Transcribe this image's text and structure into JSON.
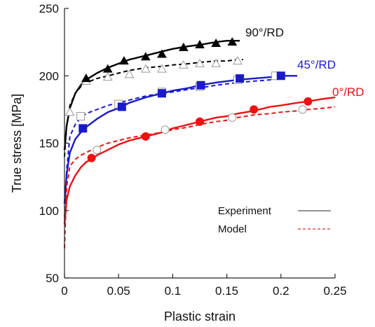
{
  "chart_data": {
    "type": "line",
    "title": "",
    "xlabel": "Plastic strain",
    "ylabel": "True stress [MPa]",
    "xlim": [
      0,
      0.25
    ],
    "ylim": [
      50,
      250
    ],
    "xticks": [
      {
        "value": 0,
        "label": "0"
      },
      {
        "value": 0.05,
        "label": "0.05"
      },
      {
        "value": 0.1,
        "label": "0.1"
      },
      {
        "value": 0.15,
        "label": "0.15"
      },
      {
        "value": 0.2,
        "label": "0.2"
      },
      {
        "value": 0.25,
        "label": "0.25"
      }
    ],
    "yticks": [
      {
        "value": 50,
        "label": "50"
      },
      {
        "value": 100,
        "label": "100"
      },
      {
        "value": 150,
        "label": "150"
      },
      {
        "value": 200,
        "label": "200"
      },
      {
        "value": 250,
        "label": "250"
      }
    ],
    "grid": false,
    "legend": {
      "position": "bottom-right",
      "entries": [
        {
          "label": "Experiment",
          "style": "solid",
          "color": "#555555"
        },
        {
          "label": "Model",
          "style": "dashed",
          "color": "#cc3333"
        }
      ]
    },
    "series": [
      {
        "name": "90°/RD",
        "color": "#000000",
        "marker": "triangle",
        "experiment": {
          "x": [
            0,
            0.002,
            0.005,
            0.01,
            0.015,
            0.02,
            0.03,
            0.04,
            0.05,
            0.06,
            0.075,
            0.09,
            0.1,
            0.115,
            0.125,
            0.14,
            0.15,
            0.155,
            0.16,
            0.162
          ],
          "y": [
            145,
            163,
            176,
            187,
            193,
            197,
            202,
            206,
            209,
            212,
            215,
            218,
            220,
            222,
            223,
            225,
            226,
            226,
            226,
            226
          ]
        },
        "model": {
          "x": [
            0,
            0.002,
            0.005,
            0.01,
            0.015,
            0.02,
            0.03,
            0.04,
            0.05,
            0.06,
            0.075,
            0.09,
            0.1,
            0.115,
            0.125,
            0.14,
            0.15,
            0.16,
            0.165
          ],
          "y": [
            140,
            163,
            178,
            187,
            192,
            195,
            198,
            200,
            202,
            204,
            206,
            207,
            208,
            209,
            210,
            211,
            211,
            212,
            212
          ]
        },
        "experiment_markers": {
          "x": [
            0.02,
            0.04,
            0.055,
            0.075,
            0.09,
            0.11,
            0.125,
            0.14,
            0.155
          ],
          "y": [
            198,
            205,
            211,
            214,
            216,
            221,
            223,
            224,
            225
          ]
        },
        "model_markers": {
          "x": [
            0.005,
            0.02,
            0.04,
            0.06,
            0.075,
            0.09,
            0.11,
            0.125,
            0.14,
            0.16
          ],
          "y": [
            173,
            196,
            199,
            201,
            205,
            205,
            208,
            209,
            209,
            211
          ]
        }
      },
      {
        "name": "45°/RD",
        "color": "#1a1acc",
        "marker": "square",
        "experiment": {
          "x": [
            0,
            0.002,
            0.005,
            0.01,
            0.015,
            0.02,
            0.03,
            0.04,
            0.05,
            0.06,
            0.075,
            0.09,
            0.1,
            0.115,
            0.125,
            0.14,
            0.15,
            0.16,
            0.175,
            0.19,
            0.2,
            0.21,
            0.215
          ],
          "y": [
            105,
            127,
            143,
            153,
            158,
            162,
            168,
            173,
            176,
            180,
            184,
            187,
            189,
            191,
            193,
            195,
            196,
            197,
            198,
            199,
            200,
            200,
            200
          ]
        },
        "model": {
          "x": [
            0,
            0.002,
            0.005,
            0.01,
            0.015,
            0.02,
            0.03,
            0.04,
            0.05,
            0.06,
            0.075,
            0.09,
            0.1,
            0.115,
            0.125,
            0.14,
            0.15,
            0.16,
            0.175,
            0.19,
            0.2
          ],
          "y": [
            95,
            130,
            155,
            164,
            169,
            172,
            175,
            178,
            180,
            182,
            185,
            187,
            188,
            190,
            191,
            193,
            194,
            195,
            196,
            197,
            198
          ]
        },
        "experiment_markers": {
          "x": [
            0.017,
            0.053,
            0.09,
            0.126,
            0.162,
            0.2
          ],
          "y": [
            161,
            177,
            187,
            193,
            198,
            200
          ]
        },
        "model_markers": {
          "x": [
            0.015,
            0.05,
            0.09,
            0.125,
            0.16,
            0.195
          ],
          "y": [
            170,
            179,
            188,
            192,
            197,
            200
          ]
        }
      },
      {
        "name": "0°/RD",
        "color": "#ee1111",
        "marker": "circle",
        "experiment": {
          "x": [
            0,
            0.002,
            0.005,
            0.01,
            0.015,
            0.02,
            0.025,
            0.03,
            0.04,
            0.05,
            0.06,
            0.075,
            0.09,
            0.1,
            0.115,
            0.125,
            0.14,
            0.15,
            0.16,
            0.175,
            0.19,
            0.2,
            0.215,
            0.225,
            0.24,
            0.25
          ],
          "y": [
            90,
            108,
            118,
            126,
            132,
            136,
            138,
            141,
            145,
            149,
            152,
            155,
            158,
            161,
            164,
            166,
            169,
            170,
            172,
            174,
            177,
            178,
            180,
            181,
            183,
            184
          ]
        },
        "model": {
          "x": [
            0,
            0.002,
            0.005,
            0.01,
            0.015,
            0.02,
            0.025,
            0.03,
            0.04,
            0.05,
            0.06,
            0.075,
            0.09,
            0.1,
            0.115,
            0.125,
            0.14,
            0.15,
            0.16,
            0.175,
            0.19,
            0.2,
            0.215,
            0.225,
            0.24,
            0.25
          ],
          "y": [
            72,
            118,
            133,
            138,
            141,
            143,
            145,
            147,
            150,
            152,
            154,
            156,
            158,
            160,
            162,
            164,
            166,
            167,
            169,
            171,
            172,
            173,
            174,
            175,
            176,
            177
          ]
        },
        "experiment_markers": {
          "x": [
            0.025,
            0.075,
            0.125,
            0.175,
            0.225
          ],
          "y": [
            139,
            155,
            166,
            175,
            181
          ]
        },
        "model_markers": {
          "x": [
            0.03,
            0.093,
            0.155,
            0.22
          ],
          "y": [
            145,
            160,
            169,
            175
          ]
        }
      }
    ]
  }
}
